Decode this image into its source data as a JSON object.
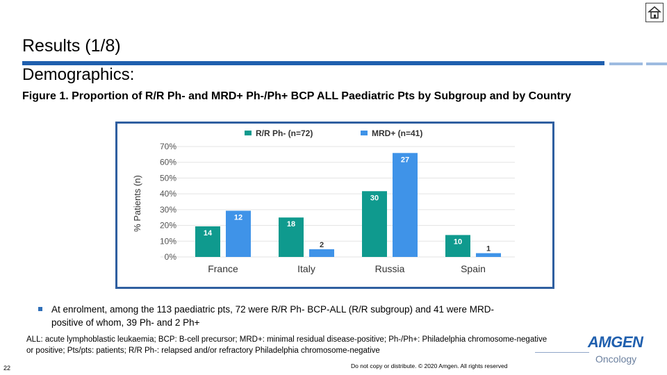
{
  "slide": {
    "title": "Results (1/8)",
    "subtitle": "Demographics:",
    "figure_caption": "Figure 1. Proportion of R/R Ph- and MRD+ Ph-/Ph+ BCP ALL Paediatric Pts by Subgroup and by Country",
    "bullet": "At enrolment, among the 113 paediatric pts, 72 were R/R Ph- BCP-ALL (R/R subgroup) and 41 were MRD-positive of whom, 39 Ph- and 2 Ph+",
    "footnote": "ALL: acute lymphoblastic leukaemia; BCP: B-cell precursor; MRD+: minimal residual disease-positive; Ph-/Ph+: Philadelphia chromosome-negative or positive; Pts/pts: patients; R/R Ph-: relapsed and/or refractory Philadelphia chromosome-negative",
    "page_number": "22",
    "copyright": "Do not copy or distribute. © 2020 Amgen. All rights reserved",
    "logo_brand": "AMGEN",
    "logo_division": "Oncology",
    "home_icon": "home-icon"
  },
  "colors": {
    "accent": "#1f5fae",
    "rr_series": "#0f9a8e",
    "mrd_series": "#3f93e8"
  },
  "chart_data": {
    "type": "bar",
    "categories": [
      "France",
      "Italy",
      "Russia",
      "Spain"
    ],
    "series": [
      {
        "name": "R/R Ph- (n=72)",
        "values": [
          19.4,
          25.0,
          41.7,
          13.9
        ],
        "labels": [
          "14",
          "18",
          "30",
          "10"
        ]
      },
      {
        "name": "MRD+ (n=41)",
        "values": [
          29.3,
          4.9,
          65.9,
          2.4
        ],
        "labels": [
          "12",
          "2",
          "27",
          "1"
        ]
      }
    ],
    "ylabel": "% Patients (n)",
    "yticks": [
      "0%",
      "10%",
      "20%",
      "30%",
      "40%",
      "50%",
      "60%",
      "70%"
    ],
    "ylim": [
      0,
      70
    ],
    "legend": "top"
  }
}
